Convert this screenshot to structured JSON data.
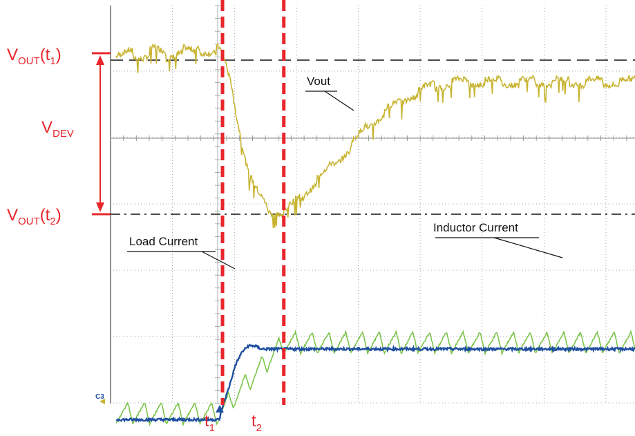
{
  "labels": {
    "vout_t1": {
      "main": "V",
      "sub": "OUT",
      "paren": "(t",
      "idx": "1",
      "close": ")"
    },
    "vout_t2": {
      "main": "V",
      "sub": "OUT",
      "paren": "(t",
      "idx": "2",
      "close": ")"
    },
    "vdev": {
      "main": "V",
      "sub": "DEV"
    },
    "t1": {
      "main": "t",
      "sub": "1"
    },
    "t2": {
      "main": "t",
      "sub": "2"
    },
    "vout_trace": "Vout",
    "load_current": "Load Current",
    "inductor_current": "Inductor Current",
    "channel_marker": "C3"
  },
  "colors": {
    "vout": "#c8b432",
    "inductor": "#7cc44a",
    "load": "#1f4fa0",
    "annotation_red": "#e8262b",
    "grid": "#8c8c8c"
  },
  "chart_data": {
    "type": "line",
    "title": "",
    "xlabel": "",
    "ylabel": "",
    "grid": true,
    "legend": "inline annotations",
    "markers": {
      "t1_time": 1.65,
      "t2_time": 2.6,
      "vout_t1_level": 2.4,
      "vout_t2_level": 0.0
    },
    "series": [
      {
        "name": "Vout",
        "x": [
          0,
          0.2,
          0.4,
          0.6,
          0.8,
          1.0,
          1.2,
          1.4,
          1.6,
          1.7,
          1.8,
          1.9,
          2.0,
          2.1,
          2.2,
          2.3,
          2.4,
          2.5,
          2.6,
          2.7,
          2.8,
          3.0,
          3.2,
          3.4,
          3.6,
          3.8,
          4.0,
          4.2,
          4.4,
          4.6,
          4.8,
          5.0,
          5.3,
          5.6,
          6.0,
          6.5,
          7.0,
          7.5,
          8.0,
          8.5,
          8.9
        ],
        "values": [
          2.4,
          2.5,
          2.45,
          2.55,
          2.45,
          2.55,
          2.5,
          2.55,
          2.55,
          2.3,
          1.9,
          1.4,
          0.9,
          0.5,
          0.3,
          0.15,
          0.05,
          0.05,
          0.0,
          0.1,
          0.2,
          0.4,
          0.6,
          0.8,
          1.0,
          1.25,
          1.45,
          1.6,
          1.75,
          1.85,
          1.95,
          2.0,
          2.05,
          2.05,
          2.05,
          2.05,
          2.05,
          2.05,
          2.05,
          2.05,
          2.05
        ]
      },
      {
        "name": "Load Current",
        "x": [
          0,
          1.4,
          1.6,
          1.65,
          1.75,
          1.85,
          1.95,
          2.05,
          2.15,
          2.25,
          2.4,
          3.0,
          4.0,
          5.0,
          6.0,
          7.0,
          8.0,
          8.9
        ],
        "values": [
          -3.2,
          -3.2,
          -3.2,
          -3.0,
          -2.7,
          -2.35,
          -2.15,
          -2.05,
          -2.05,
          -2.1,
          -2.1,
          -2.1,
          -2.1,
          -2.1,
          -2.1,
          -2.1,
          -2.1,
          -2.1
        ]
      },
      {
        "name": "Inductor Current",
        "x": [
          0,
          1.6,
          2.6,
          8.9
        ],
        "values": [
          -3.1,
          -3.1,
          -2.0,
          -2.0
        ],
        "ripple_period": 0.26,
        "ripple_amplitude": 0.33
      }
    ]
  }
}
